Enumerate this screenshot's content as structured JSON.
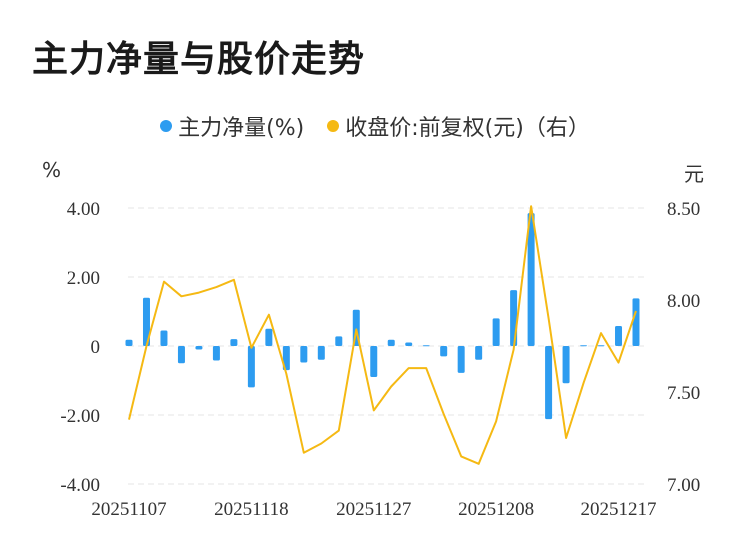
{
  "title": "主力净量与股价走势",
  "legend": {
    "net_label": "主力净量(%)",
    "price_label": "收盘价:前复权(元)（右）"
  },
  "units": {
    "left": "%",
    "right": "元"
  },
  "colors": {
    "bar": "#2d9cf0",
    "line": "#f5b913",
    "grid": "#e6e6e6"
  },
  "chart_data": {
    "type": "bar+line",
    "title": "主力净量与股价走势",
    "x_tick_labels": [
      "20251107",
      "20251118",
      "20251127",
      "20251208",
      "20251217"
    ],
    "x_tick_index": [
      0,
      7,
      14,
      21,
      28
    ],
    "left_axis": {
      "label": "%",
      "ylim": [
        -4,
        4
      ],
      "ticks": [
        "4.00",
        "2.00",
        "0",
        "-2.00",
        "-4.00"
      ],
      "tick_values": [
        4,
        2,
        0,
        -2,
        -4
      ]
    },
    "right_axis": {
      "label": "元",
      "ylim": [
        7.0,
        8.5
      ],
      "ticks": [
        "8.50",
        "8.00",
        "7.50",
        "7.00"
      ],
      "tick_values": [
        8.5,
        8.0,
        7.5,
        7.0
      ]
    },
    "series": [
      {
        "name": "主力净量(%)",
        "type": "bar",
        "axis": "left",
        "values": [
          0.18,
          1.4,
          0.45,
          -0.5,
          -0.1,
          -0.42,
          0.2,
          -1.2,
          0.5,
          -0.7,
          -0.48,
          -0.4,
          0.28,
          1.05,
          -0.9,
          0.18,
          0.1,
          0.02,
          -0.3,
          -0.78,
          -0.4,
          0.8,
          1.62,
          3.85,
          -2.12,
          -1.08,
          0.02,
          0.02,
          0.58,
          1.38
        ]
      },
      {
        "name": "收盘价:前复权(元)（右）",
        "type": "line",
        "axis": "right",
        "values": [
          7.35,
          7.75,
          8.1,
          8.02,
          8.04,
          8.07,
          8.11,
          7.74,
          7.92,
          7.6,
          7.17,
          7.22,
          7.29,
          7.84,
          7.4,
          7.53,
          7.63,
          7.63,
          7.38,
          7.15,
          7.11,
          7.34,
          7.73,
          8.51,
          7.9,
          7.25,
          7.55,
          7.82,
          7.66,
          7.94
        ]
      }
    ]
  }
}
